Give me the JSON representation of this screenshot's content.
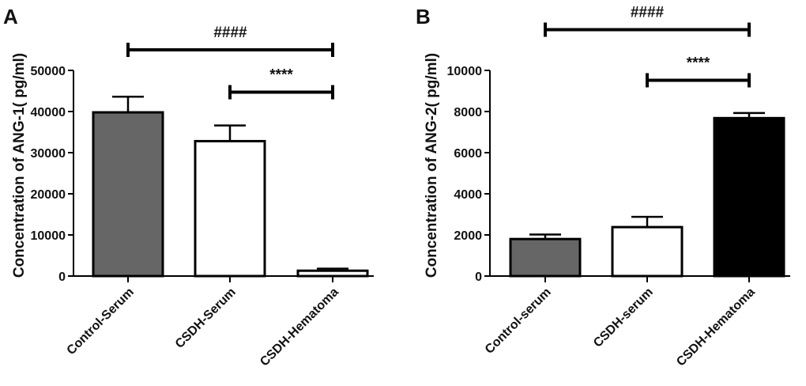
{
  "chart_data": [
    {
      "panel_label": "A",
      "type": "bar",
      "title": "",
      "xlabel": "",
      "ylabel": "Concentration of ANG-1( pg/ml)",
      "ylim": [
        0,
        50000
      ],
      "yticks": [
        0,
        10000,
        20000,
        30000,
        40000,
        50000
      ],
      "ytick_labels": [
        "0",
        "10000",
        "20000",
        "30000",
        "40000",
        "50000"
      ],
      "grid": false,
      "categories": [
        "Control-Serum",
        "CSDH-Serum",
        "CSDH-Hematoma"
      ],
      "values": [
        39800,
        32800,
        1300
      ],
      "errors": [
        3800,
        3800,
        500
      ],
      "bar_colors": [
        "#666666",
        "#ffffff",
        "#ffffff"
      ],
      "significance": [
        {
          "from": 0,
          "to": 2,
          "label": "####",
          "y": 55000
        },
        {
          "from": 1,
          "to": 2,
          "label": "****",
          "y": 44700
        }
      ]
    },
    {
      "panel_label": "B",
      "type": "bar",
      "title": "",
      "xlabel": "",
      "ylabel": "Concentration of ANG-2( pg/ml)",
      "ylim": [
        0,
        10000
      ],
      "yticks": [
        0,
        2000,
        4000,
        6000,
        8000,
        10000
      ],
      "ytick_labels": [
        "0",
        "2000",
        "4000",
        "6000",
        "8000",
        "10000"
      ],
      "grid": false,
      "categories": [
        "Control-serum",
        "CSDH-serum",
        "CSDH-Hematoma"
      ],
      "values": [
        1800,
        2380,
        7680
      ],
      "errors": [
        220,
        500,
        250
      ],
      "bar_colors": [
        "#666666",
        "#ffffff",
        "#000000"
      ],
      "significance": [
        {
          "from": 0,
          "to": 2,
          "label": "####",
          "y": 11980
        },
        {
          "from": 1,
          "to": 2,
          "label": "****",
          "y": 9520
        }
      ]
    }
  ]
}
